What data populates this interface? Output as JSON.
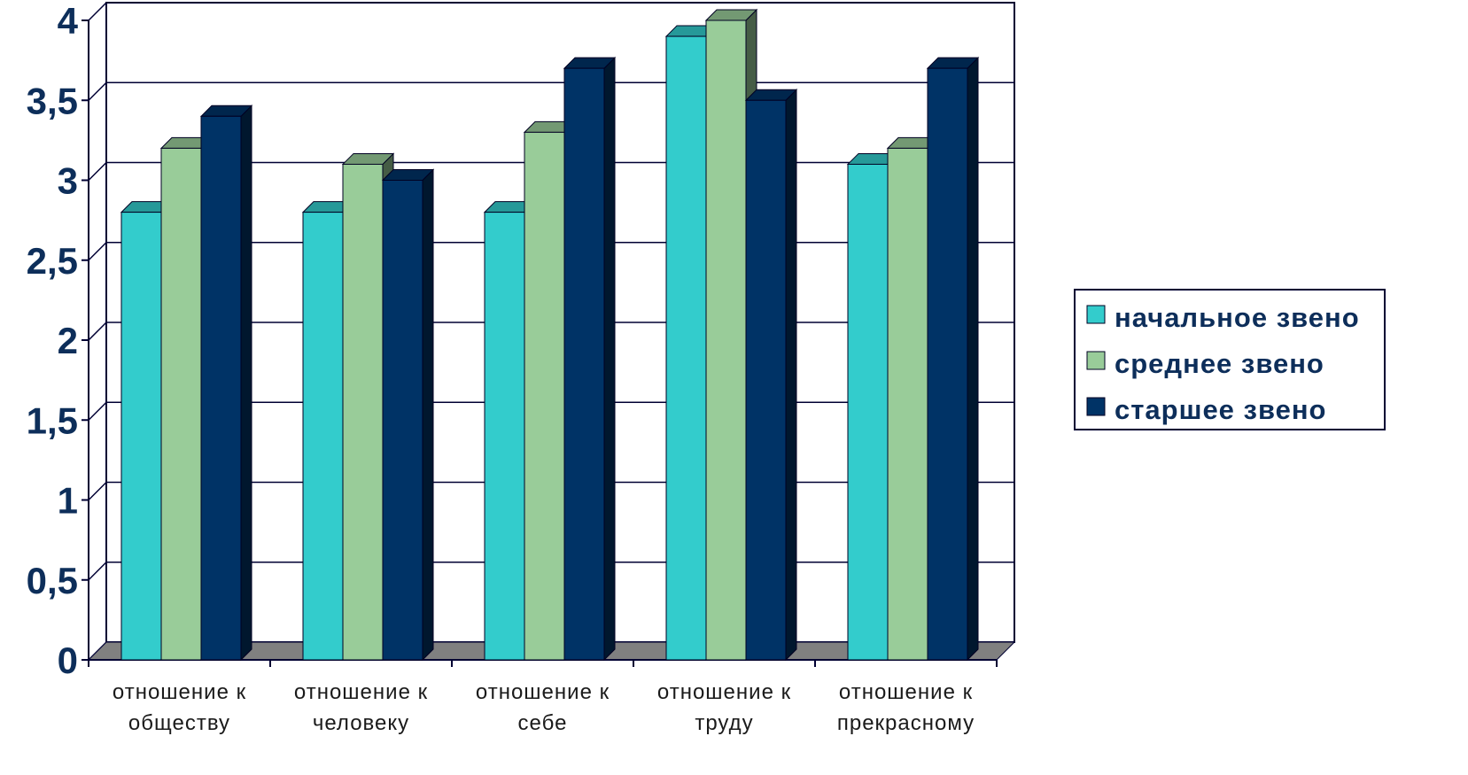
{
  "chart_data": {
    "type": "bar",
    "title": "",
    "xlabel": "",
    "ylabel": "",
    "ylim": [
      0,
      4
    ],
    "yticks": [
      "0",
      "0,5",
      "1",
      "1,5",
      "2",
      "2,5",
      "3",
      "3,5",
      "4"
    ],
    "categories": [
      [
        "отношение к",
        "обществу"
      ],
      [
        "отношение к",
        "человеку"
      ],
      [
        "отношение к",
        "себе"
      ],
      [
        "отношение к",
        "труду"
      ],
      [
        "отношение к",
        "прекрасному"
      ]
    ],
    "series": [
      {
        "name": "начальное звено",
        "color": "#33cccc",
        "values": [
          2.8,
          2.8,
          2.8,
          3.9,
          3.1
        ]
      },
      {
        "name": "среднее звено",
        "color": "#99cc99",
        "values": [
          3.2,
          3.1,
          3.3,
          4.0,
          3.2
        ]
      },
      {
        "name": "старшее звено",
        "color": "#003366",
        "values": [
          3.4,
          3.0,
          3.7,
          3.5,
          3.7
        ]
      }
    ],
    "grid": true,
    "legend_position": "right",
    "style": "3d-clustered-column"
  }
}
